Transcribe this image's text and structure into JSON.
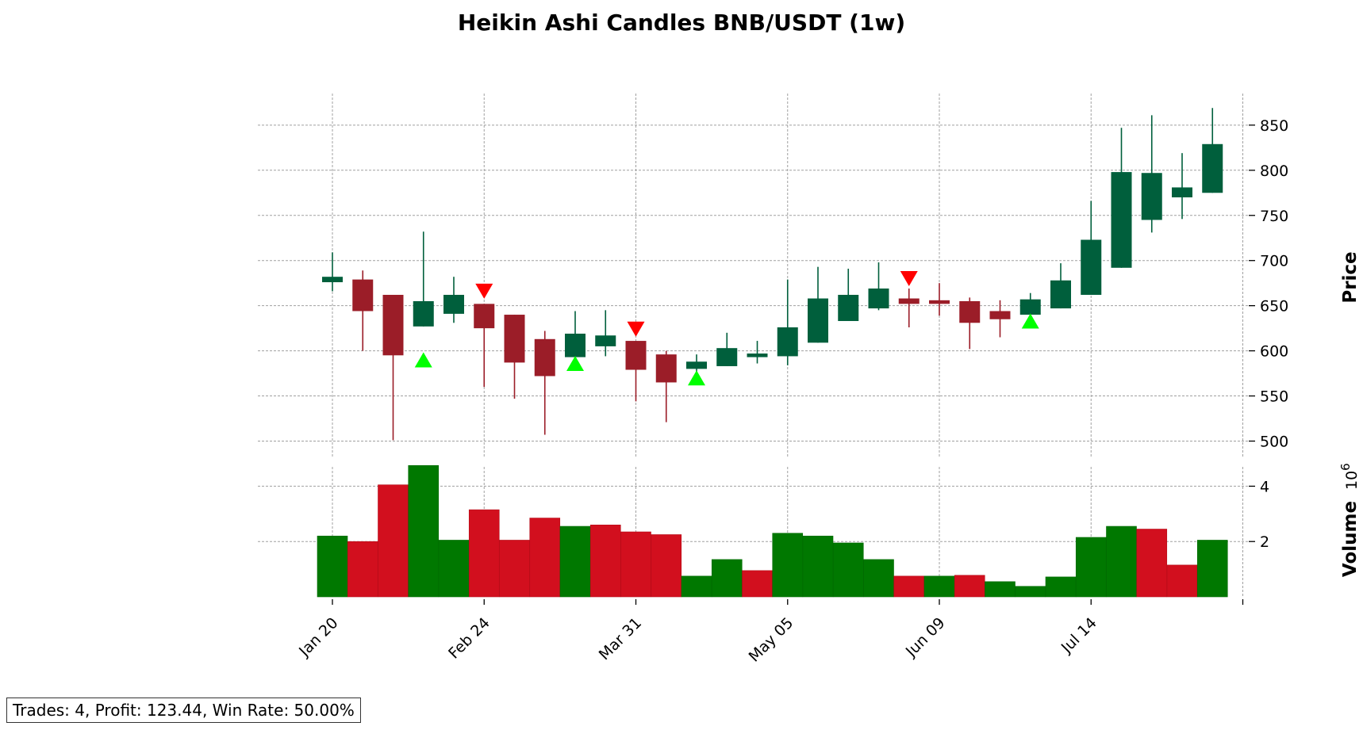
{
  "chart_data": {
    "type": "candlestick",
    "title": "Heikin Ashi Candles BNB/USDT (1w)",
    "price_axis": {
      "label": "Price",
      "ylim": [
        482,
        885
      ],
      "ticks": [
        500,
        550,
        600,
        650,
        700,
        750,
        800,
        850
      ]
    },
    "volume_axis": {
      "label": "Volume",
      "exponent_label": "10",
      "exponent_power": "6",
      "scale": 1000000,
      "ylim": [
        0,
        4700000
      ],
      "ticks": [
        2,
        4
      ]
    },
    "x_ticks": [
      {
        "index": 0,
        "label": "Jan 20"
      },
      {
        "index": 5,
        "label": "Feb 24"
      },
      {
        "index": 10,
        "label": "Mar 31"
      },
      {
        "index": 15,
        "label": "May 05"
      },
      {
        "index": 20,
        "label": "Jun 09"
      },
      {
        "index": 25,
        "label": "Jul 14"
      },
      {
        "index": 30,
        "label": ""
      }
    ],
    "grid": true,
    "colors": {
      "ha_up": "#005f3c",
      "ha_down": "#9b1d28",
      "vol_up": "#007800",
      "vol_down": "#d20f1e",
      "buy_marker": "#00ff00",
      "sell_marker": "#ff0000"
    },
    "candles": [
      {
        "open": 676,
        "close": 682,
        "high": 709,
        "low": 666
      },
      {
        "open": 679,
        "close": 644,
        "high": 689,
        "low": 600
      },
      {
        "open": 662,
        "close": 595,
        "high": 662,
        "low": 501
      },
      {
        "open": 627,
        "close": 655,
        "high": 732,
        "low": 627
      },
      {
        "open": 641,
        "close": 662,
        "high": 682,
        "low": 631
      },
      {
        "open": 652,
        "close": 625,
        "high": 652,
        "low": 560
      },
      {
        "open": 640,
        "close": 587,
        "high": 640,
        "low": 547
      },
      {
        "open": 613,
        "close": 572,
        "high": 622,
        "low": 507
      },
      {
        "open": 593,
        "close": 619,
        "high": 644,
        "low": 593
      },
      {
        "open": 605,
        "close": 617,
        "high": 645,
        "low": 594
      },
      {
        "open": 611,
        "close": 579,
        "high": 611,
        "low": 544
      },
      {
        "open": 596,
        "close": 565,
        "high": 600,
        "low": 521
      },
      {
        "open": 580,
        "close": 588,
        "high": 596,
        "low": 576
      },
      {
        "open": 583,
        "close": 603,
        "high": 620,
        "low": 583
      },
      {
        "open": 593,
        "close": 597,
        "high": 611,
        "low": 586
      },
      {
        "open": 594,
        "close": 626,
        "high": 679,
        "low": 584
      },
      {
        "open": 609,
        "close": 658,
        "high": 693,
        "low": 609
      },
      {
        "open": 633,
        "close": 662,
        "high": 691,
        "low": 633
      },
      {
        "open": 647,
        "close": 669,
        "high": 698,
        "low": 645
      },
      {
        "open": 658,
        "close": 652,
        "high": 669,
        "low": 626
      },
      {
        "open": 656,
        "close": 652,
        "high": 675,
        "low": 639
      },
      {
        "open": 655,
        "close": 631,
        "high": 659,
        "low": 602
      },
      {
        "open": 644,
        "close": 635,
        "high": 656,
        "low": 615
      },
      {
        "open": 640,
        "close": 657,
        "high": 664,
        "low": 638
      },
      {
        "open": 647,
        "close": 678,
        "high": 697,
        "low": 647
      },
      {
        "open": 662,
        "close": 723,
        "high": 766,
        "low": 662
      },
      {
        "open": 692,
        "close": 798,
        "high": 847,
        "low": 692
      },
      {
        "open": 745,
        "close": 797,
        "high": 861,
        "low": 731
      },
      {
        "open": 770,
        "close": 781,
        "high": 819,
        "low": 746
      },
      {
        "open": 775,
        "close": 829,
        "high": 869,
        "low": 775
      }
    ],
    "volume": [
      {
        "value": 2200000,
        "direction": "up"
      },
      {
        "value": 2000000,
        "direction": "down"
      },
      {
        "value": 4050000,
        "direction": "down"
      },
      {
        "value": 4750000,
        "direction": "up"
      },
      {
        "value": 2050000,
        "direction": "up"
      },
      {
        "value": 3150000,
        "direction": "down"
      },
      {
        "value": 2050000,
        "direction": "down"
      },
      {
        "value": 2850000,
        "direction": "down"
      },
      {
        "value": 2550000,
        "direction": "up"
      },
      {
        "value": 2600000,
        "direction": "down"
      },
      {
        "value": 2350000,
        "direction": "down"
      },
      {
        "value": 2250000,
        "direction": "down"
      },
      {
        "value": 750000,
        "direction": "up"
      },
      {
        "value": 1350000,
        "direction": "up"
      },
      {
        "value": 950000,
        "direction": "down"
      },
      {
        "value": 2300000,
        "direction": "up"
      },
      {
        "value": 2200000,
        "direction": "up"
      },
      {
        "value": 1950000,
        "direction": "up"
      },
      {
        "value": 1350000,
        "direction": "up"
      },
      {
        "value": 750000,
        "direction": "down"
      },
      {
        "value": 750000,
        "direction": "up"
      },
      {
        "value": 780000,
        "direction": "down"
      },
      {
        "value": 550000,
        "direction": "up"
      },
      {
        "value": 380000,
        "direction": "up"
      },
      {
        "value": 720000,
        "direction": "up"
      },
      {
        "value": 2150000,
        "direction": "up"
      },
      {
        "value": 2550000,
        "direction": "up"
      },
      {
        "value": 2450000,
        "direction": "down"
      },
      {
        "value": 1150000,
        "direction": "down"
      },
      {
        "value": 2050000,
        "direction": "up"
      }
    ],
    "signals": [
      {
        "index": 3,
        "type": "buy",
        "price": 590
      },
      {
        "index": 5,
        "type": "sell",
        "price": 666
      },
      {
        "index": 8,
        "type": "buy",
        "price": 586
      },
      {
        "index": 10,
        "type": "sell",
        "price": 624
      },
      {
        "index": 12,
        "type": "buy",
        "price": 570
      },
      {
        "index": 19,
        "type": "sell",
        "price": 680
      },
      {
        "index": 23,
        "type": "buy",
        "price": 633
      }
    ]
  },
  "stats_text": "Trades: 4, Profit: 123.44, Win Rate: 50.00%"
}
